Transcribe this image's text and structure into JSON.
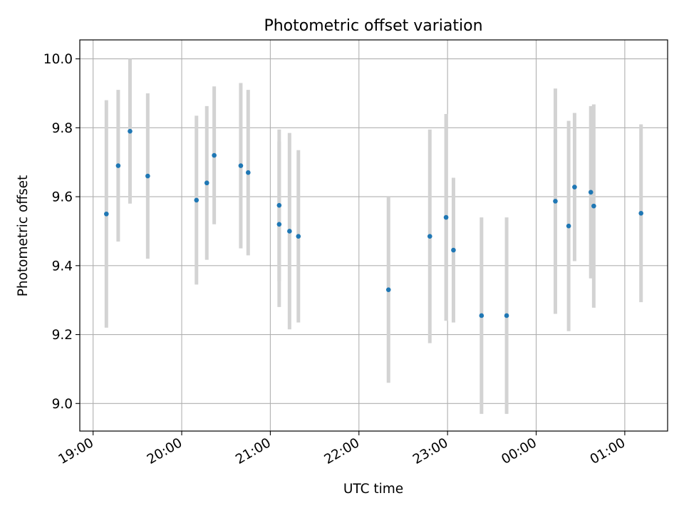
{
  "chart_data": {
    "type": "scatter",
    "title": "Photometric offset variation",
    "xlabel": "UTC time",
    "ylabel": "Photometric offset",
    "xlim": [
      "18:51",
      "01:29"
    ],
    "ylim": [
      8.92,
      10.055
    ],
    "grid": true,
    "x_ticks": [
      "19:00",
      "20:00",
      "21:00",
      "22:00",
      "23:00",
      "00:00",
      "01:00"
    ],
    "y_ticks": [
      "9.0",
      "9.2",
      "9.4",
      "9.6",
      "9.8",
      "10.0"
    ],
    "colors": {
      "point": "#1f77b4",
      "errorbar": "#d3d3d3",
      "grid": "#b0b0b0"
    },
    "series": [
      {
        "points": [
          {
            "x": "19:09",
            "y": 9.55,
            "err": 0.33
          },
          {
            "x": "19:17",
            "y": 9.69,
            "err": 0.22
          },
          {
            "x": "19:25",
            "y": 9.79,
            "err": 0.21
          },
          {
            "x": "19:37",
            "y": 9.66,
            "err": 0.24
          },
          {
            "x": "20:10",
            "y": 9.59,
            "err": 0.245
          },
          {
            "x": "20:17",
            "y": 9.64,
            "err": 0.223
          },
          {
            "x": "20:22",
            "y": 9.72,
            "err": 0.2
          },
          {
            "x": "20:40",
            "y": 9.69,
            "err": 0.24
          },
          {
            "x": "20:45",
            "y": 9.67,
            "err": 0.24
          },
          {
            "x": "21:06",
            "y": 9.575,
            "err": 0.22
          },
          {
            "x": "21:06",
            "y": 9.52,
            "err": 0.24
          },
          {
            "x": "21:13",
            "y": 9.5,
            "err": 0.285
          },
          {
            "x": "21:19",
            "y": 9.485,
            "err": 0.25
          },
          {
            "x": "22:20",
            "y": 9.33,
            "err": 0.27
          },
          {
            "x": "22:48",
            "y": 9.485,
            "err": 0.31
          },
          {
            "x": "22:59",
            "y": 9.54,
            "err": 0.3
          },
          {
            "x": "23:04",
            "y": 9.445,
            "err": 0.21
          },
          {
            "x": "23:23",
            "y": 9.255,
            "err": 0.285
          },
          {
            "x": "23:40",
            "y": 9.255,
            "err": 0.285
          },
          {
            "x": "00:13",
            "y": 9.587,
            "err": 0.327
          },
          {
            "x": "00:22",
            "y": 9.515,
            "err": 0.305
          },
          {
            "x": "00:26",
            "y": 9.628,
            "err": 0.215
          },
          {
            "x": "00:37",
            "y": 9.613,
            "err": 0.25
          },
          {
            "x": "00:39",
            "y": 9.573,
            "err": 0.295
          },
          {
            "x": "01:11",
            "y": 9.552,
            "err": 0.258
          }
        ]
      }
    ]
  }
}
